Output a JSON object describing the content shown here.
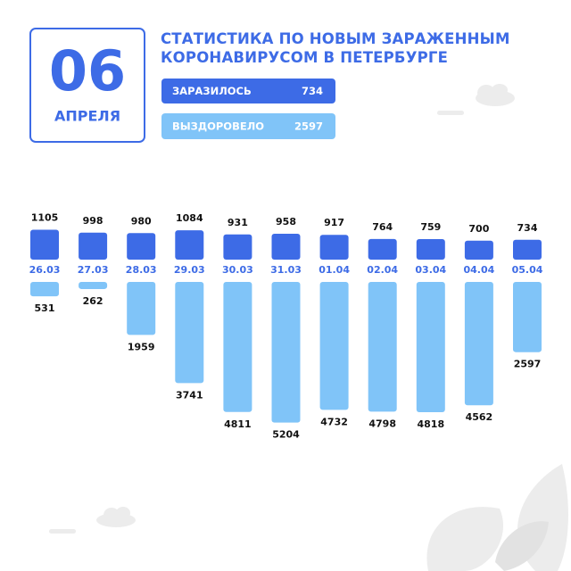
{
  "date": {
    "day": "06",
    "month": "АПРЕЛЯ"
  },
  "summary": [
    {
      "label": "ЗАРАЗИЛОСЬ",
      "value": 734
    },
    {
      "label": "ВЫЗДОРОВЕЛО",
      "value": 2597
    }
  ],
  "chart_data": {
    "type": "bar",
    "title": "СТАТИСТИКА ПО НОВЫМ ЗАРАЖЕННЫМ КОРОНАВИРУСОМ В ПЕТЕРБУРГЕ",
    "categories": [
      "26.03",
      "27.03",
      "28.03",
      "29.03",
      "30.03",
      "31.03",
      "01.04",
      "02.04",
      "03.04",
      "04.04",
      "05.04"
    ],
    "series": [
      {
        "name": "ЗАРАЗИЛОСЬ",
        "color": "#3d6be6",
        "values": [
          1105,
          998,
          980,
          1084,
          931,
          958,
          917,
          764,
          759,
          700,
          734
        ]
      },
      {
        "name": "ВЫЗДОРОВЕЛО",
        "color": "#80c4f8",
        "values": [
          531,
          262,
          1959,
          3741,
          4811,
          5204,
          4732,
          4798,
          4818,
          4562,
          2597
        ]
      }
    ]
  }
}
